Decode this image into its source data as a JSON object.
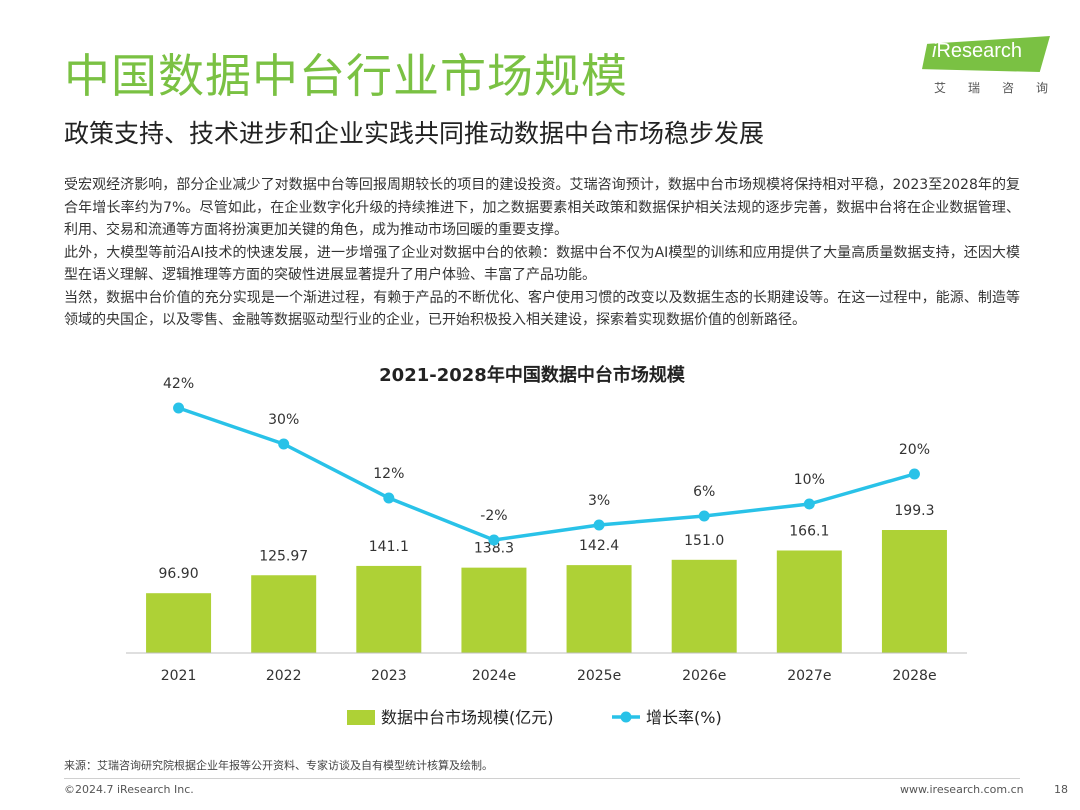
{
  "header": {
    "title": "中国数据中台行业市场规模",
    "subtitle": "政策支持、技术进步和企业实践共同推动数据中台市场稳步发展"
  },
  "logo": {
    "brand_i": "i",
    "brand_rest": "Research",
    "cn": "艾瑞咨询"
  },
  "body": {
    "paragraphs": [
      "受宏观经济影响，部分企业减少了对数据中台等回报周期较长的项目的建设投资。艾瑞咨询预计，数据中台市场规模将保持相对平稳，2023至2028年的复合年增长率约为7%。尽管如此，在企业数字化升级的持续推进下，加之数据要素相关政策和数据保护相关法规的逐步完善，数据中台将在企业数据管理、利用、交易和流通等方面将扮演更加关键的角色，成为推动市场回暖的重要支撑。",
      "此外，大模型等前沿AI技术的快速发展，进一步增强了企业对数据中台的依赖：数据中台不仅为AI模型的训练和应用提供了大量高质量数据支持，还因大模型在语义理解、逻辑推理等方面的突破性进展显著提升了用户体验、丰富了产品功能。",
      "当然，数据中台价值的充分实现是一个渐进过程，有赖于产品的不断优化、客户使用习惯的改变以及数据生态的长期建设等。在这一过程中，能源、制造等领域的央国企，以及零售、金融等数据驱动型行业的企业，已开始积极投入相关建设，探索着实现数据价值的创新路径。"
    ]
  },
  "chart_data": {
    "type": "bar",
    "title": "2021-2028年中国数据中台市场规模",
    "categories": [
      "2021",
      "2022",
      "2023",
      "2024e",
      "2025e",
      "2026e",
      "2027e",
      "2028e"
    ],
    "series": [
      {
        "name": "数据中台市场规模(亿元)",
        "type": "bar",
        "values": [
          96.9,
          125.97,
          141.1,
          138.3,
          142.4,
          151.0,
          166.1,
          199.3
        ],
        "labels": [
          "96.90",
          "125.97",
          "141.1",
          "138.3",
          "142.4",
          "151.0",
          "166.1",
          "199.3"
        ],
        "color": "#aed136"
      },
      {
        "name": "增长率(%)",
        "type": "line",
        "values": [
          42,
          30,
          12,
          -2,
          3,
          6,
          10,
          20
        ],
        "labels": [
          "42%",
          "30%",
          "12%",
          "-2%",
          "3%",
          "6%",
          "10%",
          "20%"
        ],
        "color": "#29c2e8"
      }
    ],
    "ylim_bar": [
      0,
      400
    ],
    "ylim_line": [
      -15,
      45
    ],
    "legend_position": "bottom"
  },
  "footer": {
    "source": "来源：艾瑞咨询研究院根据企业年报等公开资料、专家访谈及自有模型统计核算及绘制。",
    "copyright": "©2024.7 iResearch Inc.",
    "website": "www.iresearch.com.cn",
    "page": "18"
  }
}
